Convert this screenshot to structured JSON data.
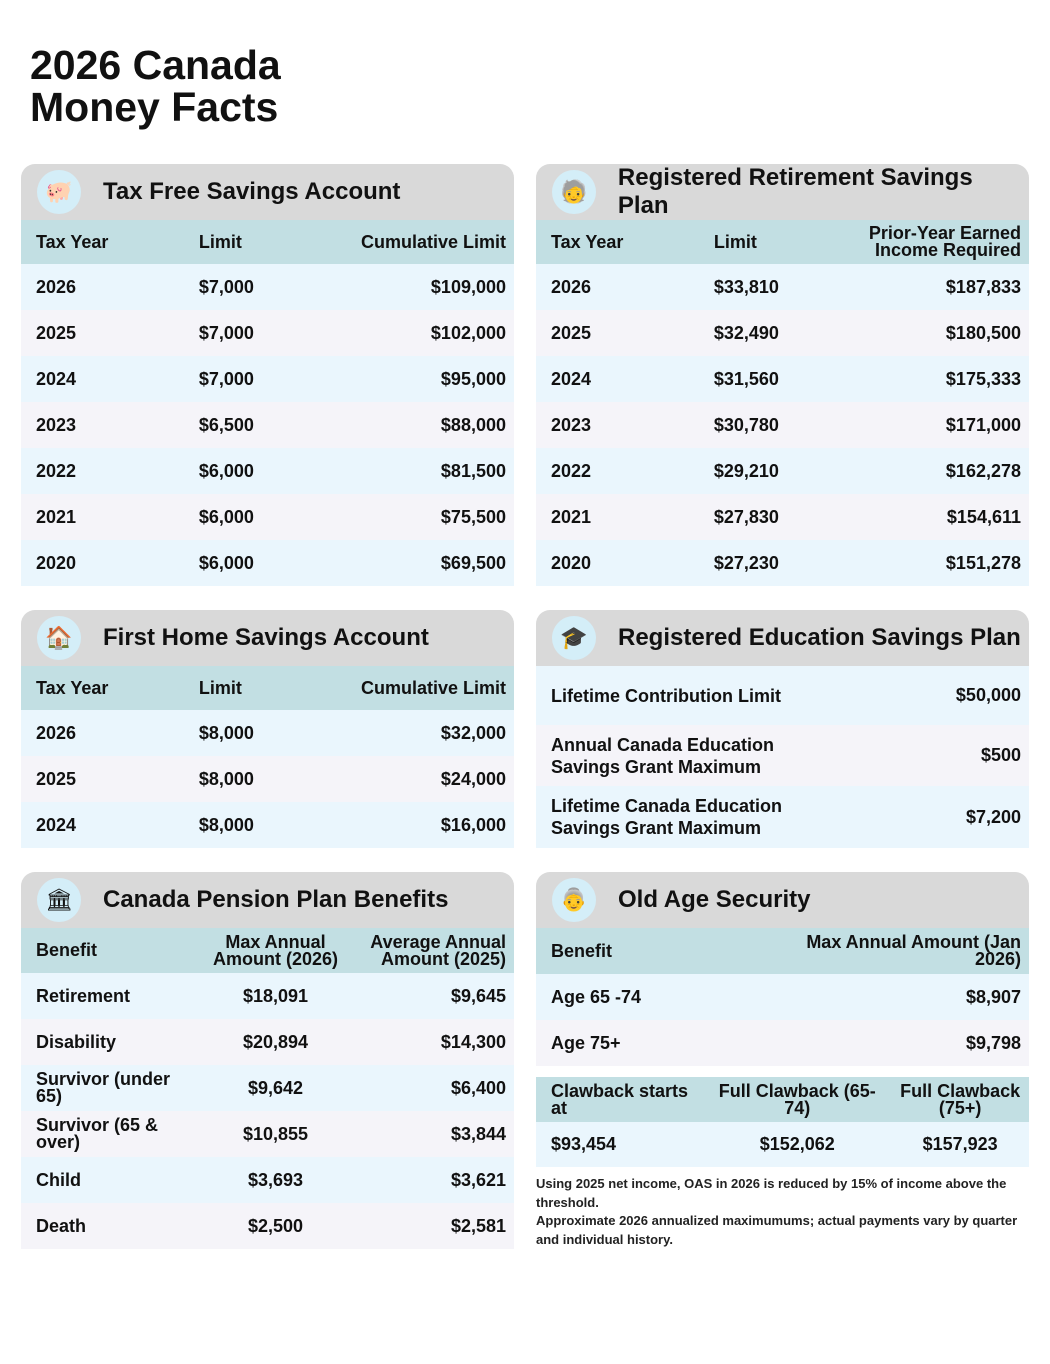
{
  "title_line1": "2026 Canada",
  "title_line2": "Money Facts",
  "tfsa": {
    "title": "Tax Free Savings Account",
    "icon": "piggy-bank-icon",
    "headers": [
      "Tax Year",
      "Limit",
      "Cumulative Limit"
    ],
    "rows": [
      [
        "2026",
        "$7,000",
        "$109,000"
      ],
      [
        "2025",
        "$7,000",
        "$102,000"
      ],
      [
        "2024",
        "$7,000",
        "$95,000"
      ],
      [
        "2023",
        "$6,500",
        "$88,000"
      ],
      [
        "2022",
        "$6,000",
        "$81,500"
      ],
      [
        "2021",
        "$6,000",
        "$75,500"
      ],
      [
        "2020",
        "$6,000",
        "$69,500"
      ]
    ]
  },
  "rrsp": {
    "title": "Registered Retirement Savings Plan",
    "icon": "retirement-icon",
    "headers": [
      "Tax Year",
      "Limit",
      "Prior-Year Earned Income Required"
    ],
    "rows": [
      [
        "2026",
        "$33,810",
        "$187,833"
      ],
      [
        "2025",
        "$32,490",
        "$180,500"
      ],
      [
        "2024",
        "$31,560",
        "$175,333"
      ],
      [
        "2023",
        "$30,780",
        "$171,000"
      ],
      [
        "2022",
        "$29,210",
        "$162,278"
      ],
      [
        "2021",
        "$27,830",
        "$154,611"
      ],
      [
        "2020",
        "$27,230",
        "$151,278"
      ]
    ]
  },
  "fhsa": {
    "title": "First Home Savings Account",
    "icon": "house-icon",
    "headers": [
      "Tax Year",
      "Limit",
      "Cumulative Limit"
    ],
    "rows": [
      [
        "2026",
        "$8,000",
        "$32,000"
      ],
      [
        "2025",
        "$8,000",
        "$24,000"
      ],
      [
        "2024",
        "$8,000",
        "$16,000"
      ]
    ]
  },
  "resp": {
    "title": "Registered Education Savings Plan",
    "icon": "graduation-cap-icon",
    "rows": [
      [
        "Lifetime Contribution Limit",
        "$50,000"
      ],
      [
        "Annual Canada Education Savings Grant Maximum",
        "$500"
      ],
      [
        "Lifetime Canada Education Savings Grant Maximum",
        "$7,200"
      ]
    ]
  },
  "cpp": {
    "title": "Canada Pension Plan Benefits",
    "icon": "government-building-icon",
    "headers": [
      "Benefit",
      "Max Annual Amount (2026)",
      "Average Annual Amount (2025)"
    ],
    "rows": [
      [
        "Retirement",
        "$18,091",
        "$9,645"
      ],
      [
        "Disability",
        "$20,894",
        "$14,300"
      ],
      [
        "Survivor (under 65)",
        "$9,642",
        "$6,400"
      ],
      [
        "Survivor (65 & over)",
        "$10,855",
        "$3,844"
      ],
      [
        "Child",
        "$3,693",
        "$3,621"
      ],
      [
        "Death",
        "$2,500",
        "$2,581"
      ]
    ]
  },
  "oas": {
    "title": "Old Age Security",
    "icon": "seniors-icon",
    "headers": [
      "Benefit",
      "Max Annual Amount (Jan 2026)"
    ],
    "rows": [
      [
        "Age 65 -74",
        "$8,907"
      ],
      [
        "Age 75+",
        "$9,798"
      ]
    ],
    "clawback_headers": [
      "Clawback starts at",
      "Full Clawback (65-74)",
      "Full Clawback (75+)"
    ],
    "clawback_values": [
      "$93,454",
      "$152,062",
      "$157,923"
    ],
    "notes": [
      "Using 2025 net income, OAS in 2026 is reduced by 15% of income above the threshold.",
      "Approximate 2026 annualized maximumums; actual payments vary by quarter and individual history."
    ]
  }
}
